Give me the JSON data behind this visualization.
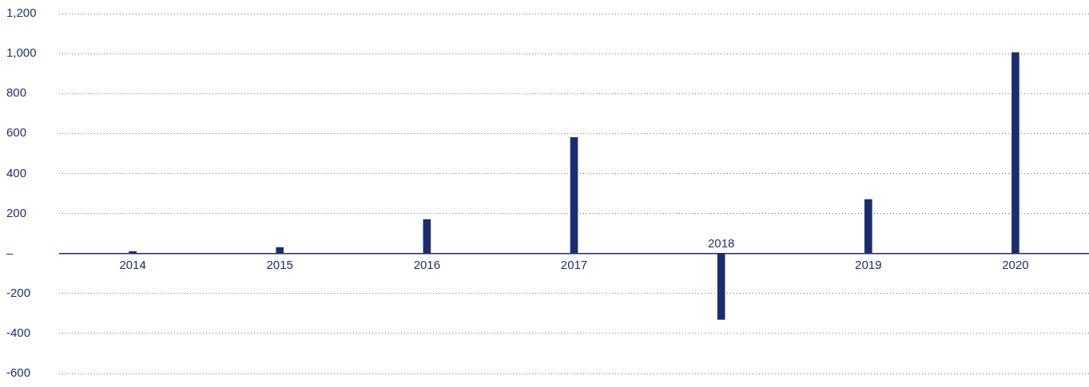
{
  "chart_data": {
    "type": "bar",
    "categories": [
      "2014",
      "2015",
      "2016",
      "2017",
      "2018",
      "2019",
      "2020"
    ],
    "values": [
      10,
      30,
      170,
      580,
      -330,
      270,
      1005
    ],
    "color": "#1c2d6f",
    "ylim": [
      -600,
      1200
    ],
    "yticks": [
      {
        "value": -600,
        "label": "-600"
      },
      {
        "value": -400,
        "label": "-400"
      },
      {
        "value": -200,
        "label": "-200"
      },
      {
        "value": 0,
        "label": "–"
      },
      {
        "value": 200,
        "label": "200"
      },
      {
        "value": 400,
        "label": "400"
      },
      {
        "value": 600,
        "label": "600"
      },
      {
        "value": 800,
        "label": "800"
      },
      {
        "value": 1000,
        "label": "1,000"
      },
      {
        "value": 1200,
        "label": "1,200"
      }
    ],
    "grid": "y",
    "legend": false
  }
}
